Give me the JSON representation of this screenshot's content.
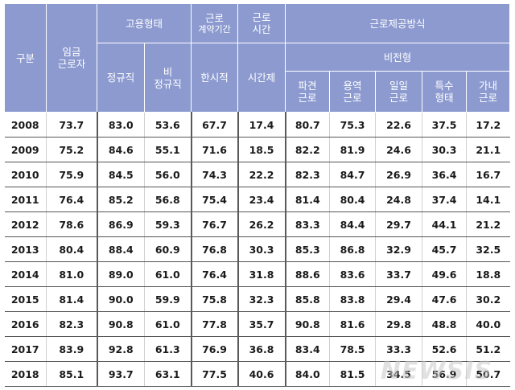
{
  "header": {
    "category": "구분",
    "wage_worker": [
      "임금",
      "근로자"
    ],
    "employment_type": "고용형태",
    "regular": "정규직",
    "non_regular": [
      "비",
      "정규직"
    ],
    "contract_period": [
      "근로",
      "계약기간"
    ],
    "temporary": "한시적",
    "work_hours": [
      "근로",
      "시간"
    ],
    "part_time": "시간제",
    "labor_provision": "근로제공방식",
    "atypical": "비전형",
    "dispatched": [
      "파견",
      "근로"
    ],
    "outsourced": [
      "용역",
      "근로"
    ],
    "daily": [
      "일일",
      "근로"
    ],
    "special": [
      "특수",
      "형태"
    ],
    "home": [
      "가내",
      "근로"
    ]
  },
  "rows": [
    [
      "2008",
      "73.7",
      "83.0",
      "53.6",
      "67.7",
      "17.4",
      "80.7",
      "75.3",
      "22.6",
      "37.5",
      "17.2"
    ],
    [
      "2009",
      "75.2",
      "84.6",
      "55.1",
      "71.6",
      "18.5",
      "82.2",
      "81.9",
      "24.6",
      "30.3",
      "21.1"
    ],
    [
      "2010",
      "75.9",
      "84.5",
      "56.0",
      "74.3",
      "22.2",
      "82.3",
      "84.7",
      "26.9",
      "36.4",
      "16.7"
    ],
    [
      "2011",
      "76.4",
      "85.2",
      "56.8",
      "75.4",
      "23.4",
      "81.4",
      "80.4",
      "24.8",
      "37.4",
      "14.1"
    ],
    [
      "2012",
      "78.6",
      "86.9",
      "59.3",
      "76.7",
      "26.2",
      "83.3",
      "84.4",
      "29.7",
      "44.1",
      "21.2"
    ],
    [
      "2013",
      "80.4",
      "88.4",
      "60.9",
      "76.8",
      "30.3",
      "85.3",
      "86.8",
      "32.9",
      "45.7",
      "32.5"
    ],
    [
      "2014",
      "81.0",
      "89.0",
      "61.0",
      "76.4",
      "31.8",
      "88.6",
      "83.6",
      "33.7",
      "49.6",
      "18.8"
    ],
    [
      "2015",
      "81.4",
      "90.0",
      "59.9",
      "75.8",
      "32.3",
      "85.8",
      "83.8",
      "29.4",
      "47.6",
      "30.2"
    ],
    [
      "2016",
      "82.3",
      "90.8",
      "61.0",
      "77.8",
      "35.7",
      "90.8",
      "81.6",
      "29.8",
      "48.8",
      "40.0"
    ],
    [
      "2017",
      "83.9",
      "92.8",
      "61.3",
      "76.9",
      "36.8",
      "83.4",
      "78.5",
      "33.3",
      "52.6",
      "51.2"
    ],
    [
      "2018",
      "85.1",
      "93.7",
      "63.1",
      "77.5",
      "40.6",
      "84.0",
      "81.5",
      "34.5",
      "56.9",
      "50.7"
    ]
  ],
  "watermark": "NEWSIS"
}
